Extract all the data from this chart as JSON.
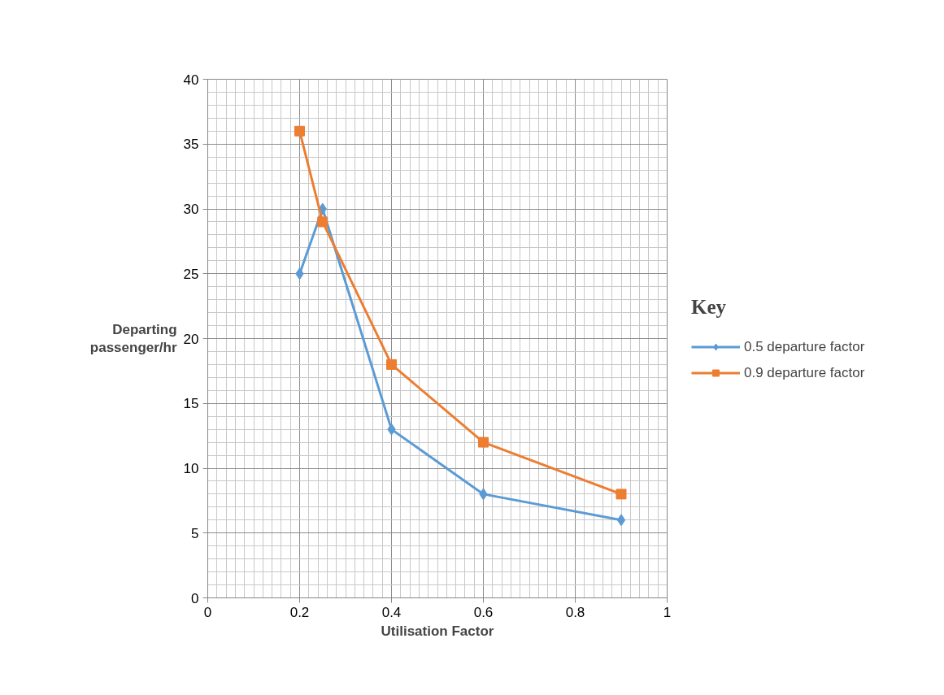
{
  "chart_data": {
    "type": "line",
    "xlabel": "Utilisation Factor",
    "ylabel": "Departing\npassenger/hr",
    "legend_title": "Key",
    "x": [
      0.2,
      0.25,
      0.4,
      0.6,
      0.9
    ],
    "series": [
      {
        "name": "0.5 departure factor",
        "color": "#5b9bd5",
        "values": [
          25,
          30,
          13,
          8,
          6
        ],
        "marker": "diamond"
      },
      {
        "name": "0.9 departure factor",
        "color": "#ed7d31",
        "values": [
          36,
          29,
          18,
          12,
          8
        ],
        "marker": "square"
      }
    ],
    "xlim": [
      0,
      1
    ],
    "ylim": [
      0,
      40
    ],
    "xticks": [
      0,
      0.2,
      0.4,
      0.6,
      0.8,
      1
    ],
    "yticks": [
      0,
      5,
      10,
      15,
      20,
      25,
      30,
      35,
      40
    ],
    "grid": true,
    "legend": "right",
    "line_style": "solid"
  }
}
